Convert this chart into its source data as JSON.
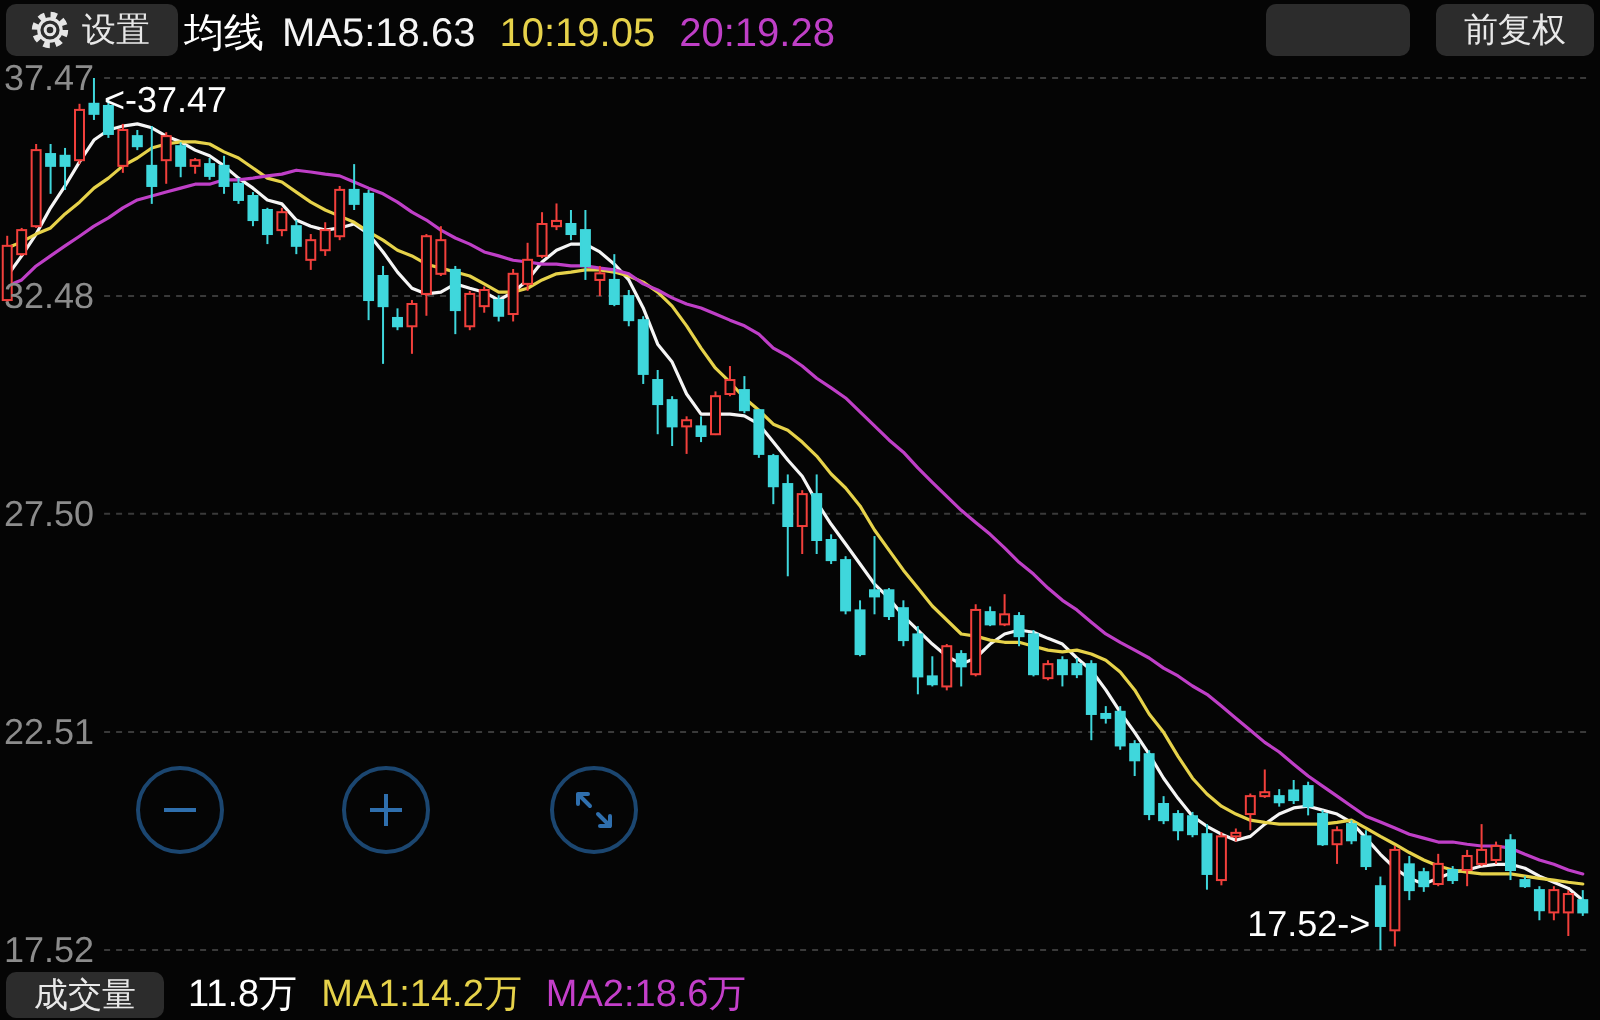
{
  "chart_data": [
    {
      "type": "candlestick",
      "categories": [
        null,
        null,
        null,
        null,
        null,
        null,
        null,
        null,
        null,
        null,
        null,
        null,
        null,
        null,
        null,
        null,
        null,
        null,
        null,
        null,
        null,
        null,
        null,
        null,
        null,
        null,
        null,
        null,
        null,
        null,
        null,
        null,
        null,
        null,
        null,
        null,
        null,
        null,
        null,
        null,
        null,
        null,
        null,
        null,
        null,
        null,
        null,
        null,
        null,
        null,
        null,
        null,
        null,
        null,
        null,
        null,
        null,
        null,
        null,
        null,
        null,
        null,
        null,
        null,
        null,
        null,
        null,
        null,
        null,
        null,
        null,
        null,
        null,
        null,
        null,
        null,
        null,
        null,
        null,
        null,
        null,
        null,
        null,
        null,
        null,
        null,
        null,
        null,
        null,
        null,
        null,
        null,
        null,
        null,
        null,
        null,
        null,
        null,
        null,
        null,
        null,
        null,
        null,
        null,
        null,
        null,
        null,
        null,
        null,
        null
      ],
      "ohlc": [
        [
          32.39,
          33.86,
          32.3,
          33.63
        ],
        [
          33.44,
          34.04,
          33.4,
          33.99
        ],
        [
          34.08,
          35.96,
          34.04,
          35.82
        ],
        [
          35.73,
          35.96,
          34.82,
          35.46
        ],
        [
          35.69,
          35.87,
          34.91,
          35.46
        ],
        [
          35.59,
          36.88,
          35.5,
          36.74
        ],
        [
          36.88,
          37.47,
          36.51,
          36.65
        ],
        [
          36.83,
          36.97,
          36.1,
          36.19
        ],
        [
          35.46,
          36.42,
          35.3,
          36.28
        ],
        [
          36.14,
          36.28,
          35.82,
          35.91
        ],
        [
          35.46,
          36.37,
          34.59,
          35.0
        ],
        [
          35.59,
          36.23,
          35.05,
          36.14
        ],
        [
          35.91,
          36.0,
          35.2,
          35.46
        ],
        [
          35.46,
          35.64,
          35.28,
          35.59
        ],
        [
          35.5,
          35.64,
          35.14,
          35.23
        ],
        [
          35.46,
          35.69,
          34.82,
          35.0
        ],
        [
          35.05,
          35.18,
          34.59,
          34.68
        ],
        [
          34.77,
          34.86,
          34.08,
          34.22
        ],
        [
          34.45,
          34.5,
          33.67,
          33.9
        ],
        [
          33.99,
          34.5,
          33.85,
          34.4
        ],
        [
          34.08,
          34.22,
          33.44,
          33.63
        ],
        [
          33.31,
          33.9,
          33.08,
          33.76
        ],
        [
          33.53,
          34.17,
          33.4,
          33.99
        ],
        [
          33.85,
          35.0,
          33.76,
          34.91
        ],
        [
          34.91,
          35.5,
          34.45,
          34.59
        ],
        [
          34.82,
          34.91,
          31.93,
          32.39
        ],
        [
          32.94,
          33.17,
          30.93,
          32.25
        ],
        [
          31.98,
          32.2,
          31.7,
          31.79
        ],
        [
          31.79,
          32.39,
          31.16,
          32.3
        ],
        [
          32.53,
          33.9,
          32.03,
          33.85
        ],
        [
          32.99,
          34.08,
          32.94,
          33.76
        ],
        [
          33.08,
          33.17,
          31.61,
          32.16
        ],
        [
          31.79,
          32.6,
          31.7,
          32.53
        ],
        [
          32.25,
          32.7,
          32.1,
          32.62
        ],
        [
          32.39,
          32.5,
          31.9,
          32.03
        ],
        [
          32.07,
          33.1,
          31.9,
          32.99
        ],
        [
          32.76,
          33.7,
          32.6,
          33.31
        ],
        [
          33.4,
          34.4,
          33.35,
          34.13
        ],
        [
          34.08,
          34.6,
          33.99,
          34.2
        ],
        [
          34.13,
          34.45,
          33.76,
          33.9
        ],
        [
          33.99,
          34.45,
          32.85,
          33.17
        ],
        [
          32.85,
          33.17,
          32.48,
          33.0
        ],
        [
          32.85,
          33.44,
          32.25,
          32.3
        ],
        [
          32.48,
          32.62,
          31.79,
          31.93
        ],
        [
          31.93,
          32.02,
          30.47,
          30.7
        ],
        [
          30.56,
          30.79,
          29.32,
          30.01
        ],
        [
          30.1,
          30.19,
          29.05,
          29.5
        ],
        [
          29.5,
          29.73,
          28.87,
          29.64
        ],
        [
          29.5,
          29.73,
          29.14,
          29.28
        ],
        [
          29.32,
          30.3,
          29.3,
          30.19
        ],
        [
          30.24,
          30.88,
          30.19,
          30.56
        ],
        [
          30.33,
          30.65,
          29.8,
          29.87
        ],
        [
          29.87,
          29.9,
          28.78,
          28.87
        ],
        [
          28.82,
          28.87,
          27.72,
          28.13
        ],
        [
          28.18,
          28.4,
          26.07,
          27.22
        ],
        [
          27.22,
          28.04,
          26.58,
          27.95
        ],
        [
          27.95,
          28.4,
          26.58,
          26.9
        ],
        [
          26.9,
          27.03,
          26.35,
          26.44
        ],
        [
          26.44,
          26.53,
          25.2,
          25.29
        ],
        [
          25.29,
          25.52,
          24.24,
          24.29
        ],
        [
          25.75,
          26.99,
          25.2,
          25.61
        ],
        [
          25.75,
          25.8,
          25.07,
          25.16
        ],
        [
          25.34,
          25.52,
          24.47,
          24.61
        ],
        [
          24.74,
          24.93,
          23.37,
          23.78
        ],
        [
          23.78,
          24.24,
          23.55,
          23.6
        ],
        [
          23.55,
          24.52,
          23.46,
          24.47
        ],
        [
          24.29,
          24.38,
          23.55,
          24.01
        ],
        [
          23.83,
          25.43,
          23.78,
          25.3
        ],
        [
          25.25,
          25.38,
          24.93,
          24.97
        ],
        [
          24.97,
          25.66,
          24.93,
          25.2
        ],
        [
          25.16,
          25.25,
          24.47,
          24.7
        ],
        [
          24.74,
          24.84,
          23.78,
          23.83
        ],
        [
          23.74,
          24.15,
          23.69,
          24.06
        ],
        [
          24.15,
          24.24,
          23.55,
          23.83
        ],
        [
          24.06,
          24.2,
          23.74,
          23.83
        ],
        [
          24.06,
          24.15,
          22.32,
          22.92
        ],
        [
          22.92,
          23.1,
          22.7,
          22.83
        ],
        [
          22.97,
          23.1,
          22.1,
          22.2
        ],
        [
          22.23,
          22.32,
          21.5,
          21.86
        ],
        [
          22.0,
          22.09,
          20.49,
          20.63
        ],
        [
          20.86,
          21.04,
          20.4,
          20.49
        ],
        [
          20.63,
          20.72,
          20.03,
          20.26
        ],
        [
          20.58,
          20.68,
          20.1,
          20.17
        ],
        [
          20.17,
          20.4,
          18.9,
          19.26
        ],
        [
          19.12,
          20.22,
          19.0,
          20.12
        ],
        [
          20.12,
          20.3,
          20.0,
          20.2
        ],
        [
          20.63,
          21.1,
          20.26,
          21.04
        ],
        [
          21.04,
          21.65,
          21.0,
          21.13
        ],
        [
          21.04,
          21.2,
          20.8,
          20.9
        ],
        [
          21.17,
          21.41,
          20.86,
          20.95
        ],
        [
          21.27,
          21.37,
          20.6,
          20.81
        ],
        [
          20.63,
          20.72,
          19.9,
          19.94
        ],
        [
          19.94,
          20.35,
          19.49,
          20.26
        ],
        [
          20.4,
          20.49,
          19.94,
          20.03
        ],
        [
          20.12,
          20.26,
          19.35,
          19.44
        ],
        [
          18.98,
          19.2,
          17.52,
          18.07
        ],
        [
          17.97,
          19.9,
          17.6,
          19.81
        ],
        [
          19.48,
          19.67,
          18.66,
          18.89
        ],
        [
          19.3,
          19.4,
          18.85,
          18.98
        ],
        [
          19.03,
          19.72,
          18.98,
          19.49
        ],
        [
          19.35,
          19.44,
          19.03,
          19.12
        ],
        [
          19.35,
          19.81,
          18.98,
          19.67
        ],
        [
          19.49,
          20.4,
          19.44,
          19.81
        ],
        [
          19.58,
          20.0,
          19.49,
          19.9
        ],
        [
          20.03,
          20.17,
          19.12,
          19.35
        ],
        [
          19.12,
          19.21,
          18.94,
          18.98
        ],
        [
          18.89,
          18.98,
          18.2,
          18.43
        ],
        [
          18.38,
          18.98,
          18.2,
          18.89
        ],
        [
          18.38,
          18.89,
          17.84,
          18.8
        ],
        [
          18.66,
          18.89,
          18.3,
          18.38
        ]
      ],
      "colors": [
        "#f2403c",
        "#f2403c",
        "#f2403c",
        "#3fd7dc",
        "#3fd7dc",
        "#f2403c",
        "#3fd7dc",
        "#3fd7dc",
        "#f2403c",
        "#3fd7dc",
        "#3fd7dc",
        "#f2403c",
        "#3fd7dc",
        "#f2403c",
        "#3fd7dc",
        "#3fd7dc",
        "#3fd7dc",
        "#3fd7dc",
        "#3fd7dc",
        "#f2403c",
        "#3fd7dc",
        "#f2403c",
        "#f2403c",
        "#f2403c",
        "#3fd7dc",
        "#3fd7dc",
        "#3fd7dc",
        "#3fd7dc",
        "#f2403c",
        "#f2403c",
        "#f2403c",
        "#3fd7dc",
        "#f2403c",
        "#f2403c",
        "#3fd7dc",
        "#f2403c",
        "#f2403c",
        "#f2403c",
        "#f2403c",
        "#3fd7dc",
        "#3fd7dc",
        "#f2403c",
        "#3fd7dc",
        "#3fd7dc",
        "#3fd7dc",
        "#3fd7dc",
        "#3fd7dc",
        "#f2403c",
        "#3fd7dc",
        "#f2403c",
        "#f2403c",
        "#3fd7dc",
        "#3fd7dc",
        "#3fd7dc",
        "#3fd7dc",
        "#f2403c",
        "#3fd7dc",
        "#3fd7dc",
        "#3fd7dc",
        "#3fd7dc",
        "#3fd7dc",
        "#3fd7dc",
        "#3fd7dc",
        "#3fd7dc",
        "#3fd7dc",
        "#f2403c",
        "#3fd7dc",
        "#f2403c",
        "#3fd7dc",
        "#f2403c",
        "#3fd7dc",
        "#3fd7dc",
        "#f2403c",
        "#3fd7dc",
        "#3fd7dc",
        "#3fd7dc",
        "#3fd7dc",
        "#3fd7dc",
        "#3fd7dc",
        "#3fd7dc",
        "#3fd7dc",
        "#3fd7dc",
        "#3fd7dc",
        "#3fd7dc",
        "#f2403c",
        "#f2403c",
        "#f2403c",
        "#f2403c",
        "#3fd7dc",
        "#3fd7dc",
        "#3fd7dc",
        "#3fd7dc",
        "#f2403c",
        "#3fd7dc",
        "#3fd7dc",
        "#3fd7dc",
        "#f2403c",
        "#3fd7dc",
        "#3fd7dc",
        "#f2403c",
        "#3fd7dc",
        "#f2403c",
        "#f2403c",
        "#f2403c",
        "#3fd7dc",
        "#3fd7dc",
        "#3fd7dc",
        "#f2403c",
        "#f2403c",
        "#3fd7dc"
      ],
      "series": [
        {
          "name": "MA5:18.63",
          "type": "line",
          "color": "#f5f5f5",
          "values": [
            32.94,
            33.4,
            33.9,
            34.5,
            35.0,
            35.55,
            36.05,
            36.28,
            36.37,
            36.42,
            36.33,
            36.14,
            36.01,
            35.82,
            35.69,
            35.46,
            35.18,
            34.95,
            34.68,
            34.59,
            34.22,
            34.08,
            33.99,
            34.04,
            34.13,
            33.9,
            33.49,
            33.03,
            32.66,
            32.53,
            32.57,
            32.76,
            32.66,
            32.57,
            32.39,
            32.57,
            32.85,
            33.26,
            33.53,
            33.67,
            33.67,
            33.49,
            33.21,
            32.85,
            32.21,
            31.38,
            30.97,
            30.24,
            29.78,
            29.78,
            29.78,
            29.74,
            29.55,
            29.14,
            28.73,
            28.36,
            27.77,
            27.26,
            26.81,
            26.35,
            25.89,
            25.57,
            25.16,
            24.84,
            24.52,
            24.24,
            24.06,
            24.2,
            24.52,
            24.75,
            24.84,
            24.79,
            24.65,
            24.52,
            24.2,
            23.92,
            23.47,
            22.96,
            22.5,
            22.0,
            21.45,
            20.99,
            20.58,
            20.35,
            20.17,
            20.03,
            20.12,
            20.4,
            20.63,
            20.77,
            20.81,
            20.72,
            20.63,
            20.44,
            20.08,
            19.71,
            19.39,
            19.16,
            19.03,
            19.16,
            19.3,
            19.35,
            19.44,
            19.48,
            19.48,
            19.39,
            19.21,
            19.07,
            18.93,
            18.66
          ]
        },
        {
          "name": "10:19.05",
          "type": "line",
          "color": "#e6d24a",
          "values": [
            33.58,
            33.72,
            33.9,
            34.04,
            34.36,
            34.63,
            34.95,
            35.18,
            35.46,
            35.64,
            35.87,
            35.96,
            36.01,
            36.01,
            35.96,
            35.78,
            35.64,
            35.41,
            35.18,
            35.09,
            34.86,
            34.63,
            34.45,
            34.31,
            34.17,
            33.95,
            33.76,
            33.53,
            33.4,
            33.21,
            33.12,
            33.03,
            32.94,
            32.76,
            32.57,
            32.57,
            32.66,
            32.85,
            32.99,
            33.03,
            33.08,
            33.08,
            33.03,
            32.94,
            32.8,
            32.57,
            32.25,
            31.8,
            31.29,
            30.83,
            30.51,
            30.15,
            29.87,
            29.55,
            29.41,
            29.14,
            28.82,
            28.41,
            28.09,
            27.68,
            27.13,
            26.67,
            26.21,
            25.8,
            25.39,
            25.07,
            24.75,
            24.7,
            24.61,
            24.56,
            24.56,
            24.47,
            24.38,
            24.34,
            24.38,
            24.29,
            24.15,
            23.88,
            23.47,
            22.92,
            22.5,
            21.95,
            21.45,
            21.09,
            20.81,
            20.63,
            20.49,
            20.44,
            20.4,
            20.4,
            20.4,
            20.4,
            20.44,
            20.49,
            20.31,
            20.12,
            19.94,
            19.75,
            19.58,
            19.44,
            19.35,
            19.3,
            19.26,
            19.26,
            19.26,
            19.21,
            19.16,
            19.12,
            19.07,
            19.03
          ]
        },
        {
          "name": "20:19.28",
          "type": "line",
          "color": "#bf3fc7",
          "values": [
            32.71,
            32.85,
            33.17,
            33.4,
            33.63,
            33.85,
            34.08,
            34.27,
            34.5,
            34.68,
            34.77,
            34.86,
            34.95,
            35.04,
            35.04,
            35.14,
            35.14,
            35.18,
            35.23,
            35.27,
            35.36,
            35.32,
            35.27,
            35.23,
            35.09,
            34.95,
            34.82,
            34.63,
            34.4,
            34.22,
            33.99,
            33.81,
            33.67,
            33.49,
            33.4,
            33.3,
            33.26,
            33.21,
            33.21,
            33.17,
            33.17,
            33.12,
            33.08,
            32.99,
            32.76,
            32.62,
            32.44,
            32.3,
            32.21,
            32.07,
            31.93,
            31.8,
            31.61,
            31.29,
            31.11,
            30.88,
            30.6,
            30.38,
            30.15,
            29.83,
            29.51,
            29.19,
            28.91,
            28.55,
            28.22,
            27.9,
            27.58,
            27.3,
            27.03,
            26.72,
            26.39,
            26.12,
            25.8,
            25.52,
            25.3,
            25.02,
            24.75,
            24.56,
            24.38,
            24.2,
            23.97,
            23.79,
            23.56,
            23.37,
            23.1,
            22.82,
            22.55,
            22.27,
            22.05,
            21.77,
            21.5,
            21.27,
            21.04,
            20.81,
            20.58,
            20.45,
            20.31,
            20.17,
            20.08,
            19.99,
            19.99,
            19.94,
            19.9,
            19.9,
            19.85,
            19.71,
            19.58,
            19.48,
            19.35,
            19.26
          ]
        }
      ],
      "legend": "top",
      "legend_title": "均线",
      "ylim": [
        17.52,
        37.47
      ],
      "yticks": [
        37.47,
        32.48,
        {
          "value": 27.5,
          "label": "27.50"
        },
        22.51,
        17.52
      ],
      "grid": "y",
      "tick_labels": "y",
      "annotations": [
        "<-37.47",
        "17.52->",
        "设置",
        null,
        "前复权"
      ]
    },
    {
      "type": "other",
      "title": "成交量",
      "annotations": [
        "11.8万",
        "MA1:14.2万",
        "MA2:18.6万"
      ]
    }
  ]
}
